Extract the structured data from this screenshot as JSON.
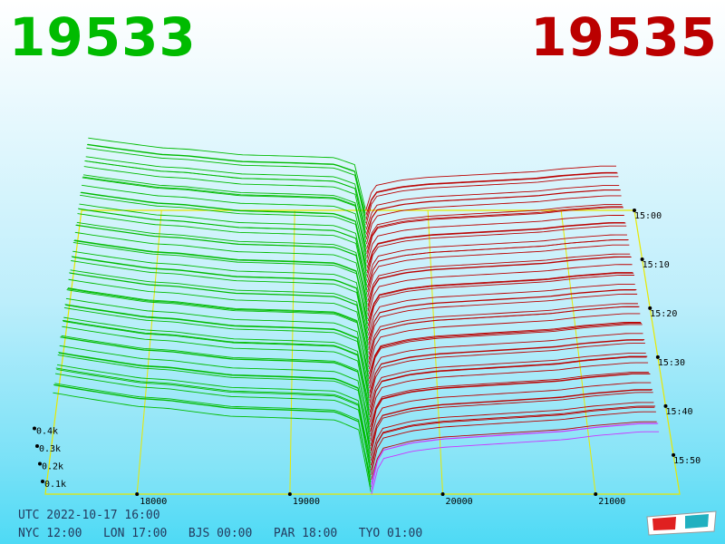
{
  "header": {
    "bid": {
      "value": "19533",
      "color": "#00bb00"
    },
    "ask": {
      "value": "19535",
      "color": "#bb0000"
    }
  },
  "times": {
    "utc": "UTC 2022-10-17 16:00",
    "nyc": "NYC 12:00",
    "lon": "LON 17:00",
    "bjs": "BJS 00:00",
    "par": "PAR 18:00",
    "tyo": "TYO 01:00"
  },
  "chart_data": {
    "type": "area",
    "title": "",
    "x_axis": {
      "label": "",
      "ticks": [
        "18000",
        "19000",
        "20000",
        "21000"
      ]
    },
    "y_axis": {
      "label": "",
      "ticks": [
        "15:00",
        "15:10",
        "15:20",
        "15:30",
        "15:40",
        "15:50"
      ]
    },
    "z_axis": {
      "label": "",
      "ticks": [
        "0.1k",
        "0.2k",
        "0.3k",
        "0.4k"
      ]
    },
    "series": [
      {
        "side": "bid",
        "color": "#00bb00",
        "profile": {
          "price": [
            17450,
            17600,
            18000,
            18200,
            18600,
            19000,
            19300,
            19450,
            19533
          ],
          "cumulative_volume_k": [
            0.52,
            0.5,
            0.45,
            0.44,
            0.4,
            0.39,
            0.38,
            0.33,
            0.0
          ]
        }
      },
      {
        "side": "ask",
        "color": "#bb0000",
        "profile": {
          "price": [
            19535,
            19560,
            19600,
            19800,
            20000,
            20400,
            20800,
            21000,
            21300
          ],
          "cumulative_volume_k": [
            0.0,
            0.1,
            0.18,
            0.22,
            0.24,
            0.26,
            0.28,
            0.3,
            0.32
          ]
        }
      }
    ],
    "colors": {
      "grid": "#e8e800",
      "bid": "#00bb00",
      "ask": "#bb0000",
      "highlight": "#cc33ff"
    }
  }
}
